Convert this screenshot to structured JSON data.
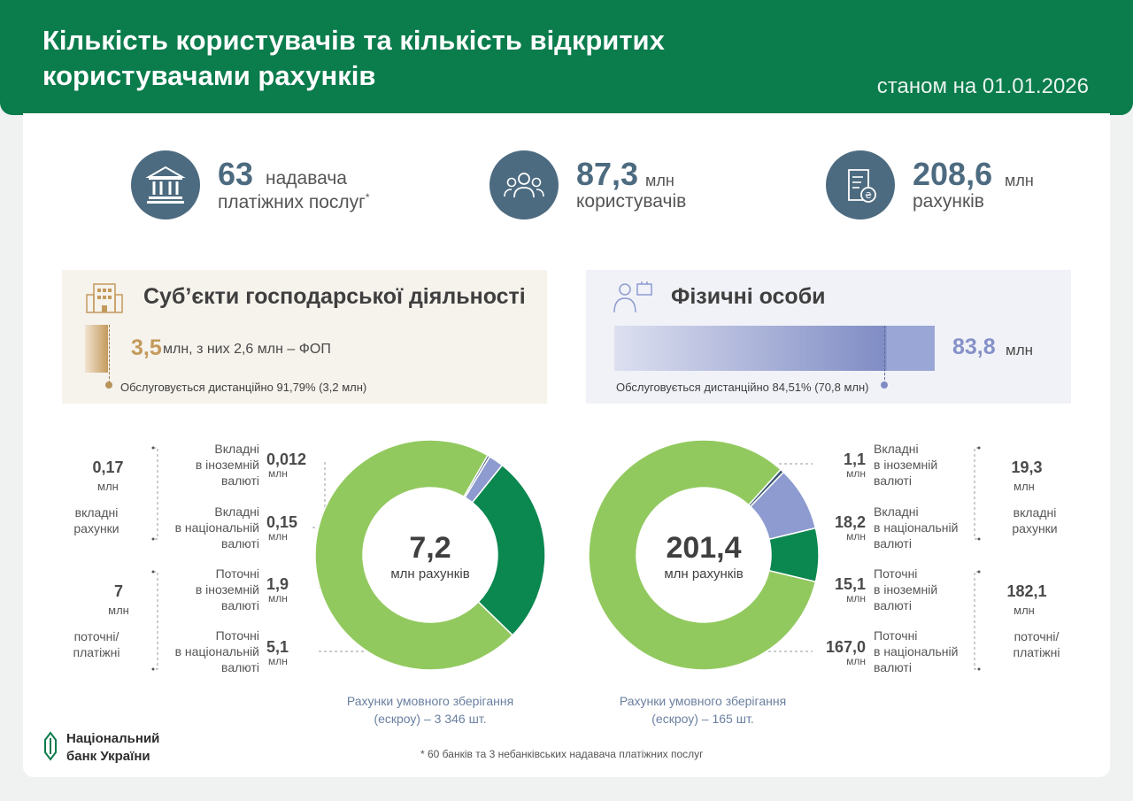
{
  "header": {
    "title_line1": "Кількість користувачів та кількість відкритих",
    "title_line2": "користувачами рахунків",
    "date": "станом на 01.01.2026"
  },
  "stats": {
    "providers": {
      "value": "63",
      "label1": "надавача",
      "label2": "платіжних послуг",
      "footnote_mark": "*",
      "icon": "bank-building-icon"
    },
    "users": {
      "value": "87,3",
      "unit": "млн",
      "label": "користувачів",
      "icon": "people-group-icon"
    },
    "accounts": {
      "value": "208,6",
      "unit": "млн",
      "label": "рахунків",
      "icon": "document-coin-icon"
    }
  },
  "business": {
    "title": "Суб’єкти господарської діяльності",
    "value": "3,5",
    "value_rest": "млн, з них 2,6 млн – ФОП",
    "remote_note": "Обслуговується дистанційно 91,79% (3,2 млн)",
    "remote_share": 0.9179,
    "icon": "office-building-icon",
    "color": "#c49a5c"
  },
  "individuals": {
    "title": "Фізичні особи",
    "value": "83,8",
    "unit": "млн",
    "remote_note": "Обслуговується дистанційно 84,51% (70,8 млн)",
    "remote_share": 0.8451,
    "icon": "person-briefcase-icon",
    "color": "#7f8cc4"
  },
  "left_breakdown": {
    "group_deposit": {
      "value": "0,17",
      "unit": "млн",
      "label1": "вкладні",
      "label2": "рахунки"
    },
    "group_current": {
      "value": "7",
      "unit": "млн",
      "label1": "поточні/",
      "label2": "платіжні"
    },
    "rows": [
      {
        "label": [
          "Вкладні",
          "в іноземній",
          "валюті"
        ],
        "value": "0,012",
        "unit": "млн"
      },
      {
        "label": [
          "Вкладні",
          "в національній",
          "валюті"
        ],
        "value": "0,15",
        "unit": "млн"
      },
      {
        "label": [
          "Поточні",
          "в іноземній",
          "валюті"
        ],
        "value": "1,9",
        "unit": "млн"
      },
      {
        "label": [
          "Поточні",
          "в національній",
          "валюті"
        ],
        "value": "5,1",
        "unit": "млн"
      }
    ],
    "total": "7,2",
    "total_sub": "млн рахунків",
    "escrow_line1": "Рахунки умовного зберігання",
    "escrow_line2": "(ескроу) – 3 346 шт."
  },
  "right_breakdown": {
    "group_deposit": {
      "value": "19,3",
      "unit": "млн",
      "label1": "вкладні",
      "label2": "рахунки"
    },
    "group_current": {
      "value": "182,1",
      "unit": "млн",
      "label1": "поточні/",
      "label2": "платіжні"
    },
    "rows": [
      {
        "label": [
          "Вкладні",
          "в іноземній",
          "валюті"
        ],
        "value": "1,1",
        "unit": "млн"
      },
      {
        "label": [
          "Вкладні",
          "в національній",
          "валюті"
        ],
        "value": "18,2",
        "unit": "млн"
      },
      {
        "label": [
          "Поточні",
          "в іноземній",
          "валюті"
        ],
        "value": "15,1",
        "unit": "млн"
      },
      {
        "label": [
          "Поточні",
          "в національній",
          "валюті"
        ],
        "value": "167,0",
        "unit": "млн"
      }
    ],
    "total": "201,4",
    "total_sub": "млн рахунків",
    "escrow_line1": "Рахунки умовного зберігання",
    "escrow_line2": "(ескроу) – 165 шт."
  },
  "chart_data": [
    {
      "type": "pie",
      "categories": [
        "Вкладні в іноземній валюті",
        "Вкладні в національній валюті",
        "Поточні в іноземній валюті",
        "Поточні в національній валюті"
      ],
      "values": [
        0.012,
        0.15,
        1.9,
        5.1
      ],
      "colors": [
        "#3d5a73",
        "#8e9bd0",
        "#0b8750",
        "#92c95f"
      ],
      "title": "7,2"
    },
    {
      "type": "pie",
      "categories": [
        "Вкладні в іноземній валюті",
        "Вкладні в національній валюті",
        "Поточні в іноземній валюті",
        "Поточні в національній валюті"
      ],
      "values": [
        1.1,
        18.2,
        15.1,
        167.0
      ],
      "colors": [
        "#3d5a73",
        "#8e9bd0",
        "#0b8750",
        "#92c95f"
      ],
      "title": "201,4"
    }
  ],
  "footer": {
    "logo_line1": "Національний",
    "logo_line2": "банк України",
    "footnote": "* 60 банків та 3 небанківських надавача платіжних послуг"
  },
  "colors": {
    "brand_green": "#0b7c4c",
    "stat_blue": "#4d6b80"
  }
}
